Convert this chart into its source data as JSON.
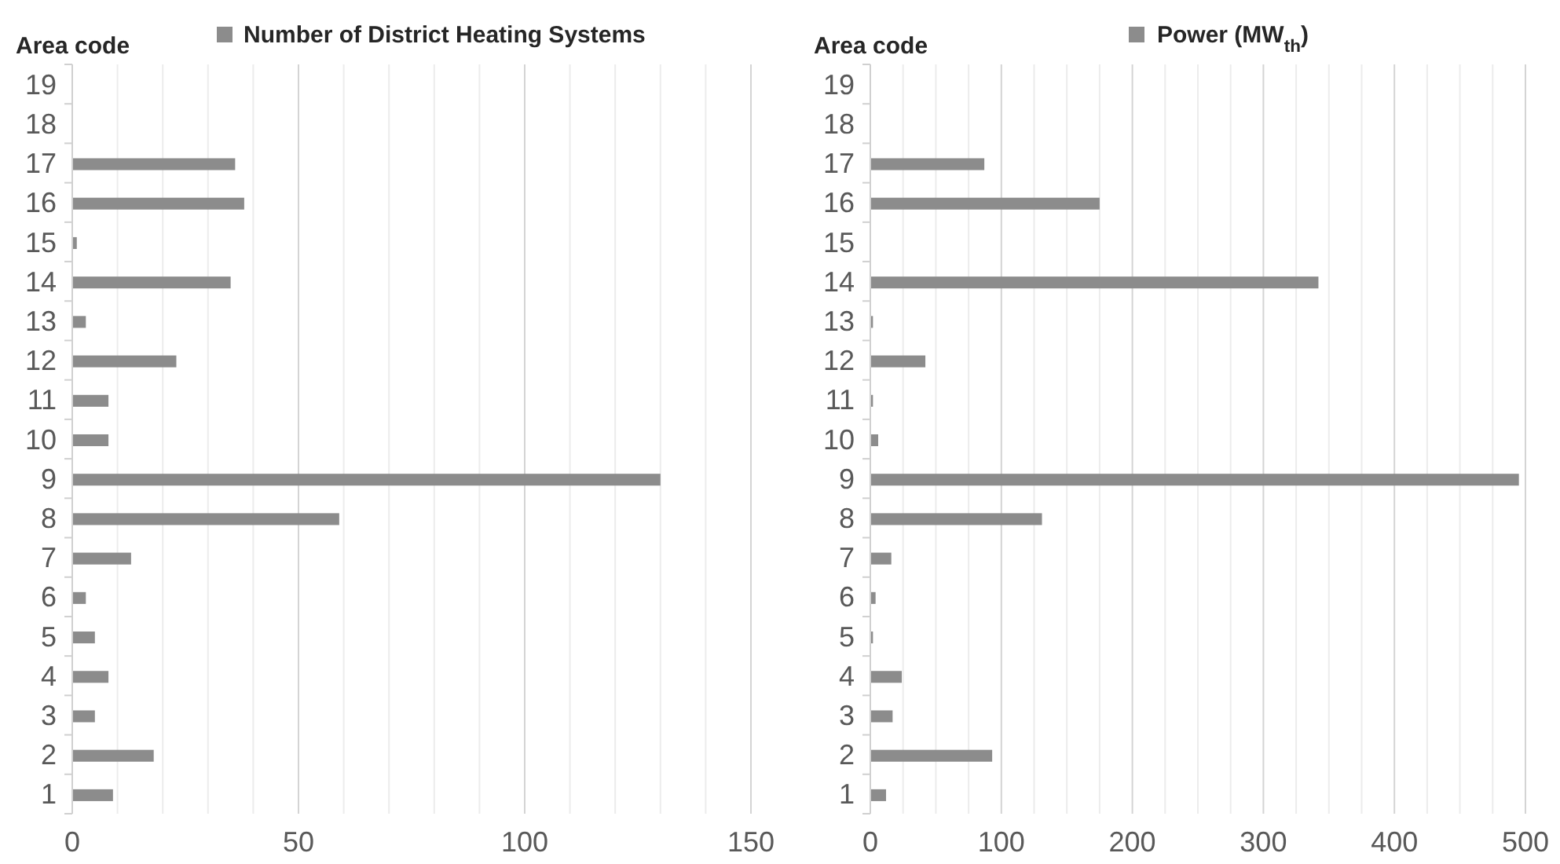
{
  "chart_data": [
    {
      "type": "bar",
      "orientation": "horizontal",
      "ylabel": "Area code",
      "categories": [
        "19",
        "18",
        "17",
        "16",
        "15",
        "14",
        "13",
        "12",
        "11",
        "10",
        "9",
        "8",
        "7",
        "6",
        "5",
        "4",
        "3",
        "2",
        "1"
      ],
      "series": [
        {
          "name": "Number of District Heating Systems",
          "color": "#8c8c8c",
          "values": [
            null,
            null,
            36,
            38,
            1,
            35,
            3,
            23,
            8,
            8,
            130,
            59,
            13,
            3,
            5,
            8,
            5,
            18,
            9
          ]
        }
      ],
      "xlim": [
        0,
        150
      ],
      "xticks": [
        0,
        {
          "value": 10,
          "label": null
        },
        {
          "value": 20,
          "label": null
        },
        {
          "value": 30,
          "label": null
        },
        {
          "value": 40,
          "label": null
        },
        50,
        {
          "value": 60,
          "label": null
        },
        {
          "value": 70,
          "label": null
        },
        {
          "value": 80,
          "label": null
        },
        {
          "value": 90,
          "label": null
        },
        100,
        {
          "value": 110,
          "label": null
        },
        {
          "value": 120,
          "label": null
        },
        {
          "value": 130,
          "label": null
        },
        {
          "value": 140,
          "label": null
        },
        150
      ],
      "grid": "x",
      "legend": "top"
    },
    {
      "type": "bar",
      "orientation": "horizontal",
      "ylabel": "Area code",
      "categories": [
        "19",
        "18",
        "17",
        "16",
        "15",
        "14",
        "13",
        "12",
        "11",
        "10",
        "9",
        "8",
        "7",
        "6",
        "5",
        "4",
        "3",
        "2",
        "1"
      ],
      "series": [
        {
          "name": "Power (MW$_{th}$)",
          "color": "#8c8c8c",
          "values": [
            null,
            null,
            87,
            175,
            null,
            342,
            2,
            42,
            2,
            6,
            495,
            131,
            16,
            4,
            2,
            24,
            17,
            93,
            12
          ]
        }
      ],
      "xlim": [
        0,
        500
      ],
      "xticks": [
        0,
        {
          "value": 25,
          "label": null
        },
        {
          "value": 50,
          "label": null
        },
        {
          "value": 75,
          "label": null
        },
        100,
        {
          "value": 125,
          "label": null
        },
        {
          "value": 150,
          "label": null
        },
        {
          "value": 175,
          "label": null
        },
        200,
        {
          "value": 225,
          "label": null
        },
        {
          "value": 250,
          "label": null
        },
        {
          "value": 275,
          "label": null
        },
        300,
        {
          "value": 325,
          "label": null
        },
        {
          "value": 350,
          "label": null
        },
        {
          "value": 375,
          "label": null
        },
        400,
        {
          "value": 425,
          "label": null
        },
        {
          "value": 450,
          "label": null
        },
        {
          "value": 475,
          "label": null
        },
        500
      ],
      "grid": "x",
      "legend": "top"
    }
  ]
}
